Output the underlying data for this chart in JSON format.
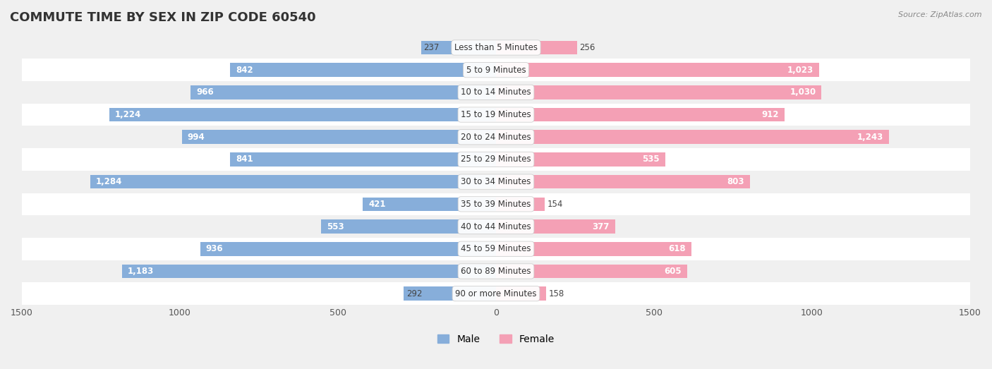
{
  "title": "COMMUTE TIME BY SEX IN ZIP CODE 60540",
  "source": "Source: ZipAtlas.com",
  "categories": [
    "Less than 5 Minutes",
    "5 to 9 Minutes",
    "10 to 14 Minutes",
    "15 to 19 Minutes",
    "20 to 24 Minutes",
    "25 to 29 Minutes",
    "30 to 34 Minutes",
    "35 to 39 Minutes",
    "40 to 44 Minutes",
    "45 to 59 Minutes",
    "60 to 89 Minutes",
    "90 or more Minutes"
  ],
  "male_values": [
    237,
    842,
    966,
    1224,
    994,
    841,
    1284,
    421,
    553,
    936,
    1183,
    292
  ],
  "female_values": [
    256,
    1023,
    1030,
    912,
    1243,
    535,
    803,
    154,
    377,
    618,
    605,
    158
  ],
  "male_color": "#87AEDA",
  "female_color": "#F4A0B5",
  "bar_height": 0.62,
  "xlim": 1500,
  "row_colors": [
    "#f0f0f0",
    "#ffffff"
  ],
  "title_fontsize": 13,
  "label_fontsize": 8.5,
  "tick_fontsize": 9,
  "legend_fontsize": 10,
  "inside_threshold": 350
}
